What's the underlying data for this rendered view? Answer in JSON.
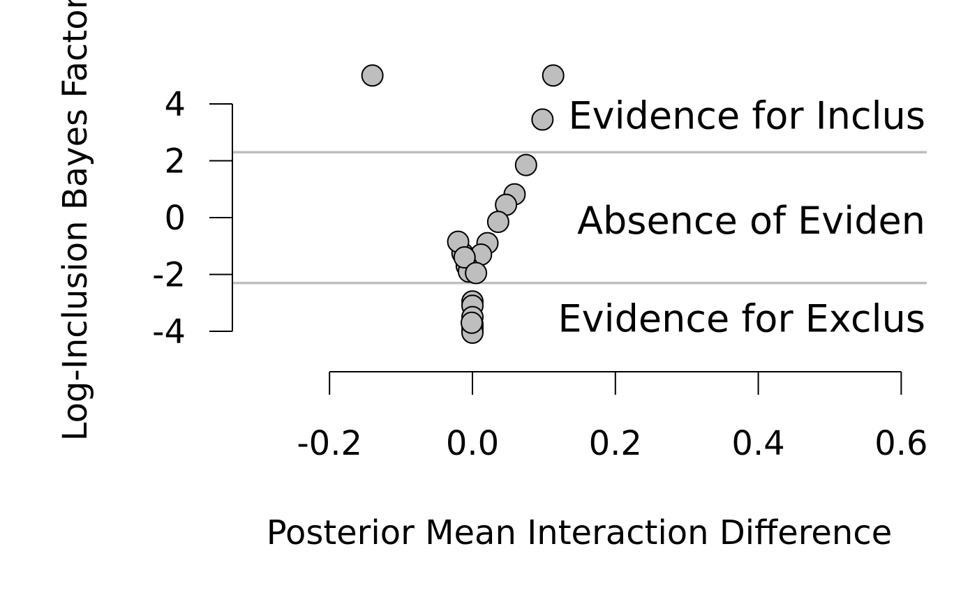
{
  "chart_data": {
    "type": "scatter",
    "xlabel": "Posterior Mean Interaction Difference",
    "ylabel": "Log-Inclusion Bayes Factor",
    "xlim": [
      -0.2,
      0.6
    ],
    "ylim": [
      -4,
      4
    ],
    "x_ticks": [
      "-0.2",
      "0.0",
      "0.2",
      "0.4",
      "0.6"
    ],
    "y_ticks": [
      "4",
      "2",
      "0",
      "-2",
      "-4"
    ],
    "thresholds": [
      2.3,
      -2.3
    ],
    "regions": [
      {
        "label": "Evidence for Inclus",
        "y": 3.6
      },
      {
        "label": "Absence of Eviden",
        "y": -0.1
      },
      {
        "label": "Evidence for Exclus",
        "y": -3.55
      }
    ],
    "points": [
      {
        "x": -0.14,
        "y": 5.0
      },
      {
        "x": 0.113,
        "y": 5.0
      },
      {
        "x": 0.098,
        "y": 3.45
      },
      {
        "x": 0.075,
        "y": 1.85
      },
      {
        "x": 0.059,
        "y": 0.82
      },
      {
        "x": 0.047,
        "y": 0.45
      },
      {
        "x": 0.036,
        "y": -0.15
      },
      {
        "x": 0.021,
        "y": -0.9
      },
      {
        "x": 0.012,
        "y": -1.3
      },
      {
        "x": -0.014,
        "y": -1.25
      },
      {
        "x": -0.008,
        "y": -1.7
      },
      {
        "x": -0.005,
        "y": -1.9
      },
      {
        "x": -0.02,
        "y": -0.85
      },
      {
        "x": -0.011,
        "y": -1.4
      },
      {
        "x": 0.005,
        "y": -1.95
      },
      {
        "x": 0.0,
        "y": -2.95
      },
      {
        "x": 0.0,
        "y": -3.1
      },
      {
        "x": 0.0,
        "y": -3.5
      },
      {
        "x": 0.0,
        "y": -3.75
      },
      {
        "x": 0.0,
        "y": -3.85
      },
      {
        "x": 0.0,
        "y": -3.95
      },
      {
        "x": 0.0,
        "y": -4.05
      },
      {
        "x": -0.001,
        "y": -3.7
      }
    ],
    "colors": {
      "marker_fill": "#bebebe",
      "marker_stroke": "#000000",
      "threshold_line": "#bebebe",
      "axis": "#000000"
    },
    "grid": false,
    "legend": "none"
  }
}
